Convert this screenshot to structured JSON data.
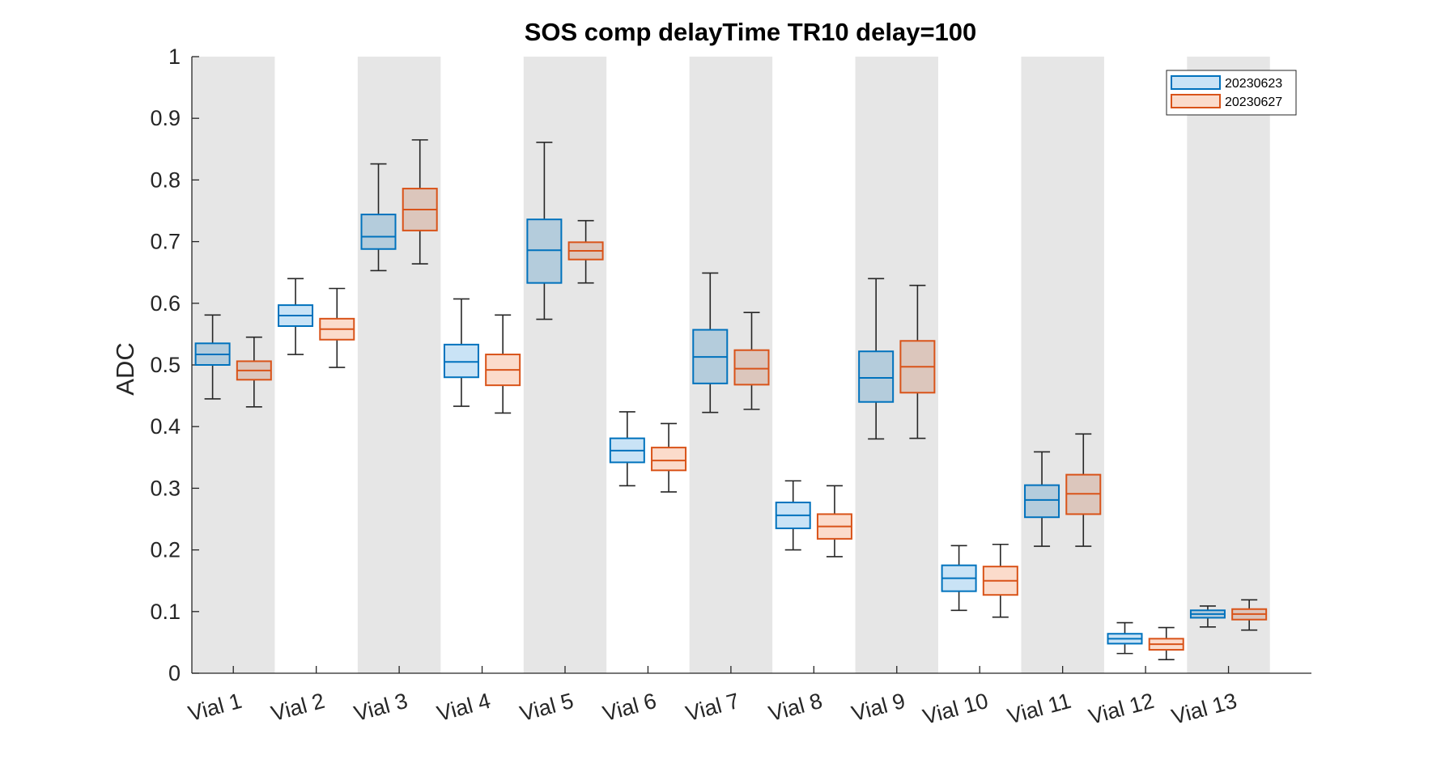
{
  "chart_data": {
    "type": "boxplot",
    "title": "SOS comp delayTime TR10 delay=100",
    "xlabel": "",
    "ylabel": "ADC",
    "ylim": [
      0,
      1
    ],
    "yticks": [
      "0",
      "0.1",
      "0.2",
      "0.3",
      "0.4",
      "0.5",
      "0.6",
      "0.7",
      "0.8",
      "0.9",
      "1"
    ],
    "categories": [
      "Vial 1",
      "Vial 2",
      "Vial 3",
      "Vial 4",
      "Vial 5",
      "Vial 6",
      "Vial 7",
      "Vial 8",
      "Vial 9",
      "Vial 10",
      "Vial 11",
      "Vial 12",
      "Vial 13"
    ],
    "alternating_background": "gray on odd vials (1, 3, 5, 7, 9, 11, 13)",
    "legend_position": "top-right",
    "series": [
      {
        "name": "20230623",
        "color": "#0072BD",
        "fill": "#C9E3F6",
        "boxes": [
          {
            "min": 0.445,
            "q1": 0.5,
            "median": 0.517,
            "q3": 0.535,
            "max": 0.581
          },
          {
            "min": 0.517,
            "q1": 0.563,
            "median": 0.58,
            "q3": 0.597,
            "max": 0.64
          },
          {
            "min": 0.653,
            "q1": 0.688,
            "median": 0.708,
            "q3": 0.744,
            "max": 0.826
          },
          {
            "min": 0.433,
            "q1": 0.48,
            "median": 0.505,
            "q3": 0.533,
            "max": 0.607
          },
          {
            "min": 0.574,
            "q1": 0.633,
            "median": 0.686,
            "q3": 0.736,
            "max": 0.861
          },
          {
            "min": 0.304,
            "q1": 0.342,
            "median": 0.361,
            "q3": 0.381,
            "max": 0.424
          },
          {
            "min": 0.423,
            "q1": 0.47,
            "median": 0.513,
            "q3": 0.557,
            "max": 0.649
          },
          {
            "min": 0.2,
            "q1": 0.235,
            "median": 0.256,
            "q3": 0.277,
            "max": 0.312
          },
          {
            "min": 0.38,
            "q1": 0.44,
            "median": 0.479,
            "q3": 0.522,
            "max": 0.64
          },
          {
            "min": 0.102,
            "q1": 0.133,
            "median": 0.154,
            "q3": 0.175,
            "max": 0.207
          },
          {
            "min": 0.206,
            "q1": 0.253,
            "median": 0.281,
            "q3": 0.305,
            "max": 0.359
          },
          {
            "min": 0.032,
            "q1": 0.048,
            "median": 0.056,
            "q3": 0.064,
            "max": 0.082
          },
          {
            "min": 0.075,
            "q1": 0.09,
            "median": 0.096,
            "q3": 0.102,
            "max": 0.109
          }
        ]
      },
      {
        "name": "20230627",
        "color": "#D95319",
        "fill": "#FBDBCB",
        "boxes": [
          {
            "min": 0.432,
            "q1": 0.476,
            "median": 0.491,
            "q3": 0.506,
            "max": 0.545
          },
          {
            "min": 0.496,
            "q1": 0.541,
            "median": 0.558,
            "q3": 0.575,
            "max": 0.624
          },
          {
            "min": 0.664,
            "q1": 0.718,
            "median": 0.752,
            "q3": 0.786,
            "max": 0.865
          },
          {
            "min": 0.422,
            "q1": 0.467,
            "median": 0.492,
            "q3": 0.517,
            "max": 0.581
          },
          {
            "min": 0.633,
            "q1": 0.671,
            "median": 0.685,
            "q3": 0.699,
            "max": 0.734
          },
          {
            "min": 0.294,
            "q1": 0.329,
            "median": 0.345,
            "q3": 0.366,
            "max": 0.405
          },
          {
            "min": 0.428,
            "q1": 0.468,
            "median": 0.494,
            "q3": 0.524,
            "max": 0.585
          },
          {
            "min": 0.189,
            "q1": 0.218,
            "median": 0.238,
            "q3": 0.258,
            "max": 0.304
          },
          {
            "min": 0.381,
            "q1": 0.455,
            "median": 0.497,
            "q3": 0.539,
            "max": 0.629
          },
          {
            "min": 0.091,
            "q1": 0.127,
            "median": 0.15,
            "q3": 0.173,
            "max": 0.209
          },
          {
            "min": 0.206,
            "q1": 0.258,
            "median": 0.291,
            "q3": 0.322,
            "max": 0.388
          },
          {
            "min": 0.022,
            "q1": 0.038,
            "median": 0.047,
            "q3": 0.056,
            "max": 0.074
          },
          {
            "min": 0.07,
            "q1": 0.087,
            "median": 0.096,
            "q3": 0.104,
            "max": 0.119
          }
        ]
      }
    ]
  }
}
